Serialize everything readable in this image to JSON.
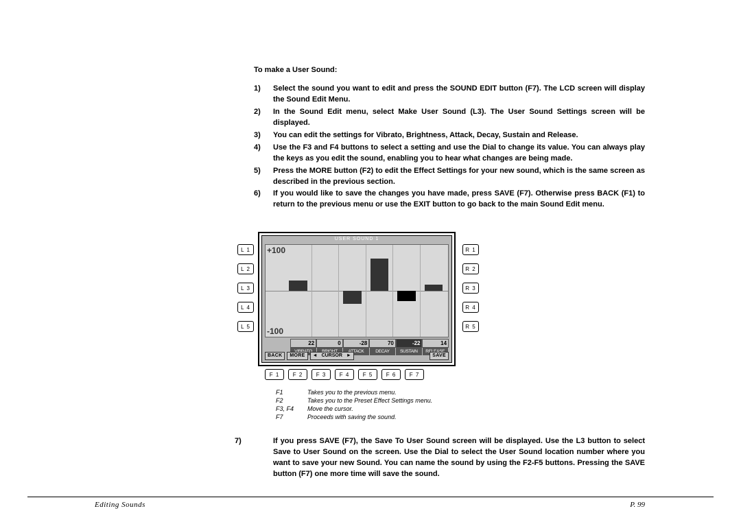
{
  "heading": "To make a User Sound:",
  "steps": [
    "Select the sound you want to edit and press the SOUND EDIT button (F7).  The LCD screen will display the Sound Edit Menu.",
    "In the Sound Edit menu, select Make User Sound (L3).  The User Sound Settings screen will be displayed.",
    "You can edit the settings for Vibrato, Brightness, Attack, Decay, Sustain and Release.",
    "Use the F3 and F4 buttons to select a setting and use the Dial to change its value.  You can always play the keys as you edit the sound, enabling you to hear what changes are being made.",
    "Press the MORE button (F2) to edit  the Effect Settings for your new sound, which is the same screen as described in the previous section.",
    "If you would like to save the changes you have made, press SAVE (F7).  Otherwise press BACK (F1) to return to the previous menu or use the EXIT button to go back to the main Sound Edit menu."
  ],
  "step7": "If you press SAVE (F7), the Save To User Sound screen will be displayed.  Use the L3 button to select Save to User Sound on the screen.  Use the Dial to select the User Sound location number where you want to save your new Sound.  You can name the sound by using the F2-F5 buttons.  Pressing the SAVE button (F7) one more time will save the sound.",
  "lcd": {
    "title": "USER SOUND 1",
    "y_top": "+100",
    "y_bottom": "-100",
    "ylim": [
      -100,
      100
    ],
    "params": [
      "VIBRATO",
      "BRIGHT",
      "ATTACK",
      "DECAY",
      "SUSTAIN",
      "RELEASE"
    ],
    "values": [
      22,
      0,
      -28,
      70,
      -22,
      14
    ],
    "value_labels": [
      "22",
      "0",
      "-28",
      "70",
      "-22",
      "14"
    ],
    "selected_index": 4,
    "bar_color": "#333333",
    "selected_bar_color": "#000000",
    "chart_bg": "#d9d9d9",
    "panel_bg": "#b8b8b8",
    "buttons": {
      "back": "BACK",
      "more": "MORE",
      "cursor": "CURSOR",
      "save": "SAVE"
    }
  },
  "left_labels": [
    "L 1",
    "L 2",
    "L 3",
    "L 4",
    "L 5"
  ],
  "right_labels": [
    "R 1",
    "R 2",
    "R 3",
    "R 4",
    "R 5"
  ],
  "bottom_labels": [
    "F 1",
    "F 2",
    "F 3",
    "F 4",
    "F 5",
    "F 6",
    "F 7"
  ],
  "captions": [
    {
      "k": "F1",
      "t": "Takes you to the previous menu."
    },
    {
      "k": "F2",
      "t": "Takes you to the Preset Effect Settings menu."
    },
    {
      "k": "F3, F4",
      "t": "Move the cursor."
    },
    {
      "k": "F7",
      "t": "Proceeds with saving the sound."
    }
  ],
  "footer": {
    "left": "Editing Sounds",
    "right": "P. 99"
  }
}
